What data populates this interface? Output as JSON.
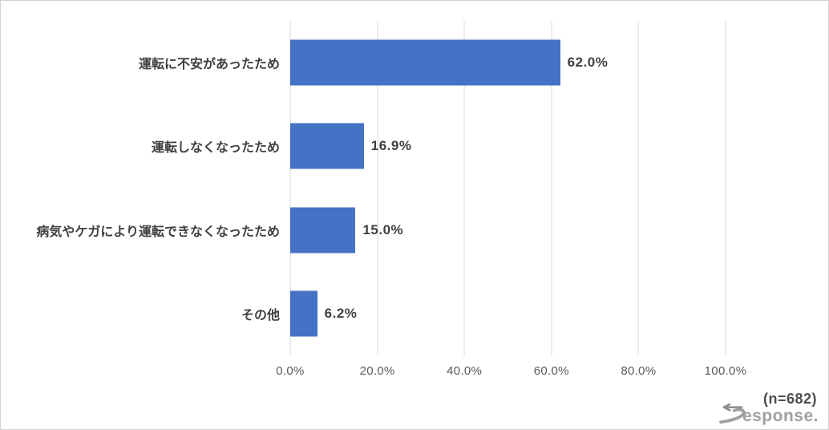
{
  "chart_data": {
    "type": "bar",
    "orientation": "horizontal",
    "title": "",
    "categories": [
      "運転に不安があったため",
      "運転しなくなったため",
      "病気やケガにより運転できなくなったため",
      "その他"
    ],
    "values": [
      62.0,
      16.9,
      15.0,
      6.2
    ],
    "value_labels": [
      "62.0%",
      "16.9%",
      "15.0%",
      "6.2%"
    ],
    "x_ticks": [
      "0.0%",
      "20.0%",
      "40.0%",
      "60.0%",
      "80.0%",
      "100.0%"
    ],
    "xlim": [
      0,
      100
    ],
    "grid": true,
    "legend": false,
    "colors": {
      "bar": "#4472C4",
      "gridline": "#D9D9D9",
      "category_label": "#404040",
      "value_label": "#404040",
      "tick_label": "#595959"
    }
  },
  "footer": {
    "sample_size": "(n=682)",
    "logo_text": "esponse."
  }
}
